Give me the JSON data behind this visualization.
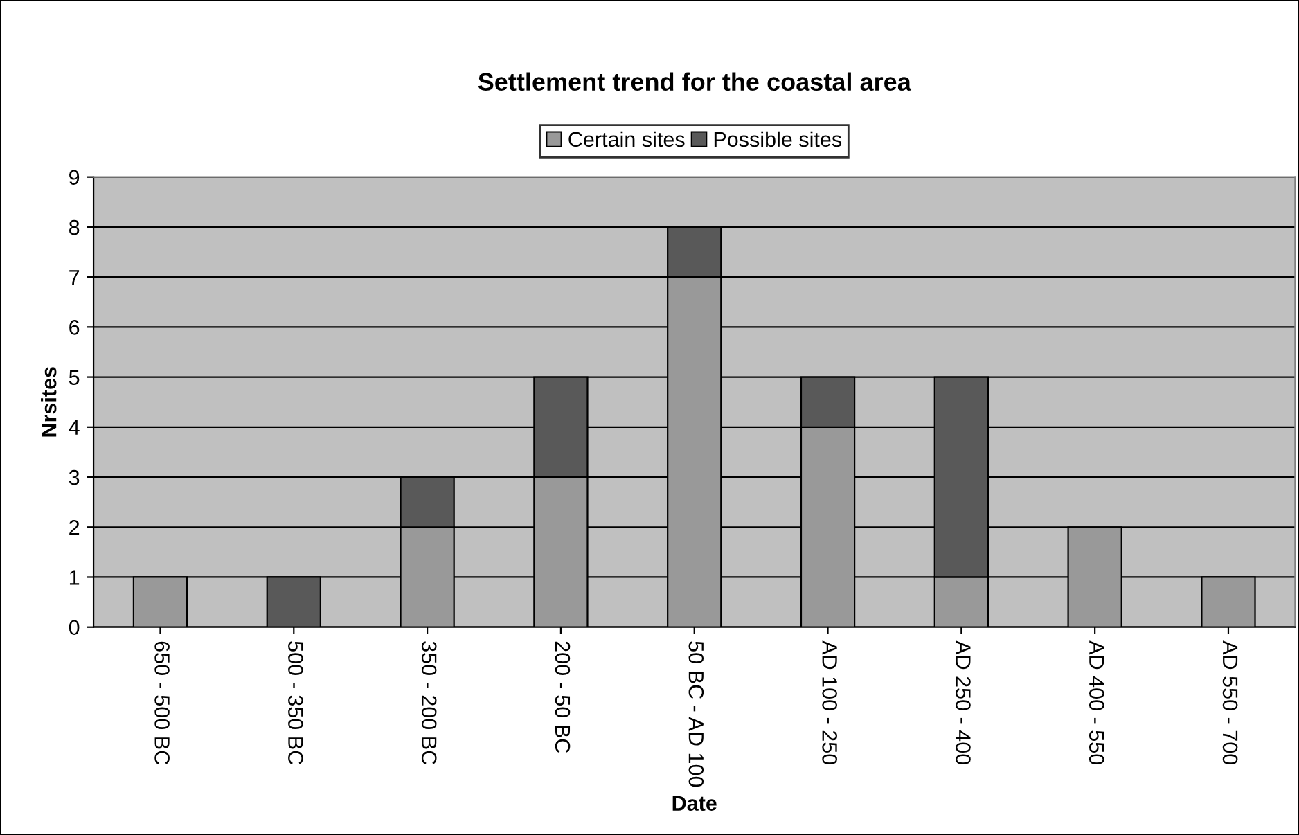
{
  "chart_data": {
    "type": "bar",
    "title": "Settlement trend for the coastal area",
    "xlabel": "Date",
    "ylabel": "Nrsites",
    "categories": [
      "650 - 500 BC",
      "500 - 350 BC",
      "350 - 200 BC",
      "200 - 50 BC",
      "50 BC - AD 100",
      "AD 100 - 250",
      "AD 250 - 400",
      "AD 400 - 550",
      "AD 550 - 700"
    ],
    "series": [
      {
        "name": "Certain sites",
        "color": "#999999",
        "values": [
          1,
          0,
          2,
          3,
          7,
          4,
          1,
          2,
          1
        ]
      },
      {
        "name": "Possible sites",
        "color": "#595959",
        "values": [
          0,
          1,
          1,
          2,
          1,
          1,
          4,
          0,
          0
        ]
      }
    ],
    "stacked": true,
    "ylim": [
      0,
      9
    ],
    "yticks": [
      0,
      1,
      2,
      3,
      4,
      5,
      6,
      7,
      8,
      9
    ],
    "grid": "y",
    "legend": "top"
  }
}
